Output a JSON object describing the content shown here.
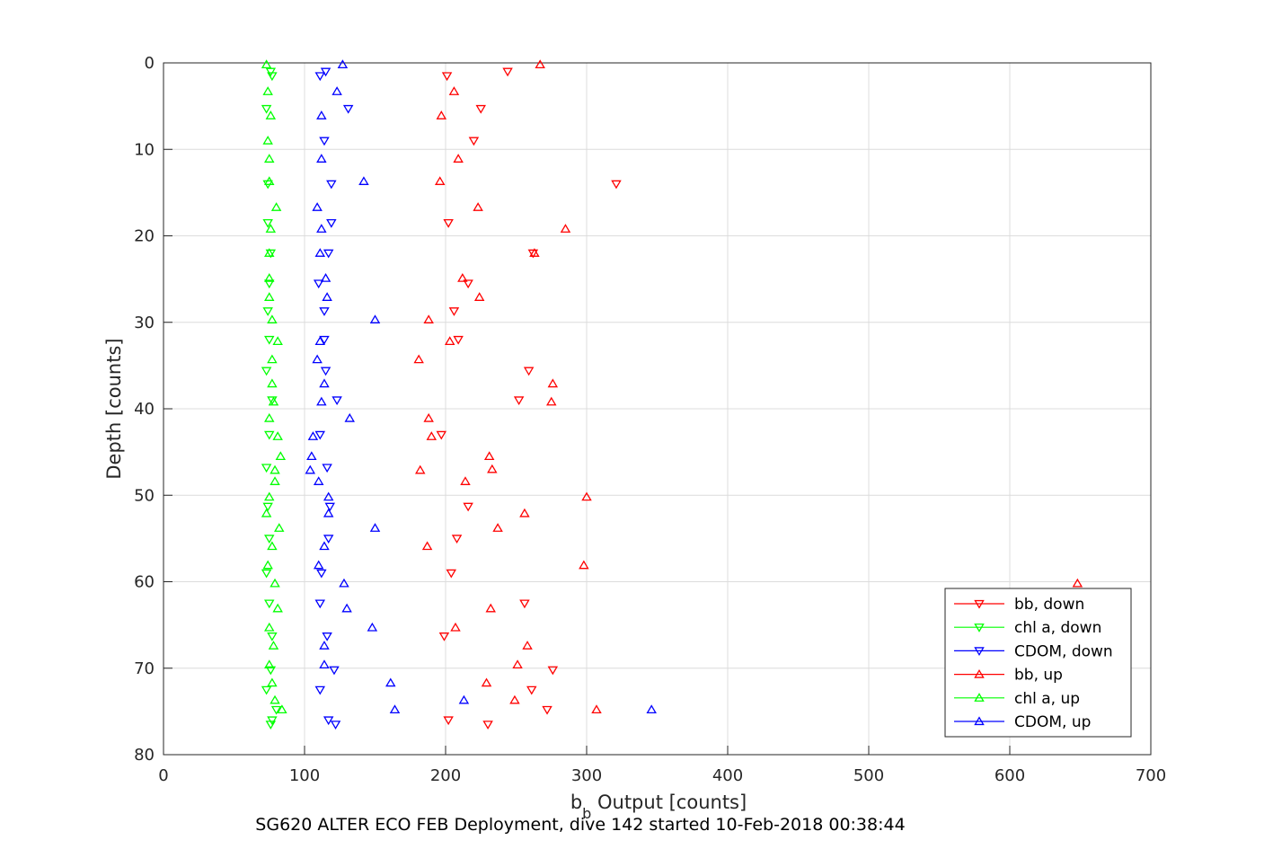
{
  "chart_data": {
    "type": "scatter",
    "caption": "SG620 ALTER ECO FEB Deployment, dive 142 started 10-Feb-2018 00:38:44",
    "xlabel_main": "b",
    "xlabel_sub": "b",
    "xlabel_rest": " Output [counts]",
    "ylabel": "Depth [counts]",
    "xlim": [
      0,
      700
    ],
    "ylim": [
      0,
      80
    ],
    "y_reversed": true,
    "grid": true,
    "legend_position": "bottom-right",
    "xticks": [
      0,
      100,
      200,
      300,
      400,
      500,
      600,
      700
    ],
    "yticks": [
      0,
      10,
      20,
      30,
      40,
      50,
      60,
      70,
      80
    ],
    "series": [
      {
        "name": "bb, down",
        "color": "#ff0000",
        "marker": "triangle-down",
        "points": [
          [
            201,
            1.5
          ],
          [
            244,
            1
          ],
          [
            225,
            5.3
          ],
          [
            220,
            9
          ],
          [
            321,
            14
          ],
          [
            202,
            18.5
          ],
          [
            262,
            22
          ],
          [
            216,
            25.5
          ],
          [
            206,
            28.7
          ],
          [
            209,
            32
          ],
          [
            259,
            35.6
          ],
          [
            252,
            39
          ],
          [
            197,
            43
          ],
          [
            216,
            51.3
          ],
          [
            208,
            55
          ],
          [
            204,
            59
          ],
          [
            256,
            62.5
          ],
          [
            199,
            66.3
          ],
          [
            276,
            70.2
          ],
          [
            261,
            72.5
          ],
          [
            272,
            74.8
          ],
          [
            202,
            76
          ],
          [
            230,
            76.5
          ]
        ]
      },
      {
        "name": "chl a, down",
        "color": "#00ff00",
        "marker": "triangle-down",
        "points": [
          [
            76,
            1
          ],
          [
            77,
            1.5
          ],
          [
            73,
            5.3
          ],
          [
            74,
            14
          ],
          [
            74,
            18.5
          ],
          [
            76,
            22
          ],
          [
            75,
            25.5
          ],
          [
            74,
            28.7
          ],
          [
            75,
            32
          ],
          [
            73,
            35.6
          ],
          [
            77,
            39
          ],
          [
            75,
            43
          ],
          [
            73,
            46.8
          ],
          [
            74,
            51.3
          ],
          [
            75,
            55
          ],
          [
            73,
            59
          ],
          [
            75,
            62.5
          ],
          [
            77,
            66.3
          ],
          [
            76,
            70.2
          ],
          [
            73,
            72.5
          ],
          [
            80,
            74.8
          ],
          [
            77,
            76
          ],
          [
            76,
            76.5
          ]
        ]
      },
      {
        "name": "CDOM, down",
        "color": "#0000ff",
        "marker": "triangle-down",
        "points": [
          [
            115,
            1
          ],
          [
            111,
            1.5
          ],
          [
            131,
            5.3
          ],
          [
            114,
            9
          ],
          [
            119,
            14
          ],
          [
            119,
            18.5
          ],
          [
            117,
            22
          ],
          [
            110,
            25.5
          ],
          [
            114,
            28.7
          ],
          [
            114,
            32
          ],
          [
            115,
            35.6
          ],
          [
            123,
            39
          ],
          [
            111,
            43
          ],
          [
            116,
            46.8
          ],
          [
            118,
            51.3
          ],
          [
            117,
            55
          ],
          [
            112,
            59
          ],
          [
            111,
            62.5
          ],
          [
            116,
            66.3
          ],
          [
            121,
            70.2
          ],
          [
            111,
            72.5
          ],
          [
            117,
            76
          ],
          [
            122,
            76.5
          ]
        ]
      },
      {
        "name": "bb, up",
        "color": "#ff0000",
        "marker": "triangle-up",
        "points": [
          [
            267,
            0.2
          ],
          [
            206,
            3.3
          ],
          [
            197,
            6.1
          ],
          [
            209,
            11.1
          ],
          [
            196,
            13.7
          ],
          [
            223,
            16.7
          ],
          [
            285,
            19.2
          ],
          [
            263,
            22
          ],
          [
            212,
            24.9
          ],
          [
            224,
            27.1
          ],
          [
            188,
            29.7
          ],
          [
            203,
            32.2
          ],
          [
            181,
            34.3
          ],
          [
            276,
            37.1
          ],
          [
            275,
            39.2
          ],
          [
            188,
            41.1
          ],
          [
            190,
            43.2
          ],
          [
            231,
            45.5
          ],
          [
            233,
            47
          ],
          [
            182,
            47.1
          ],
          [
            214,
            48.4
          ],
          [
            300,
            50.2
          ],
          [
            256,
            52.1
          ],
          [
            237,
            53.8
          ],
          [
            187,
            55.9
          ],
          [
            298,
            58.1
          ],
          [
            648,
            60.2
          ],
          [
            232,
            63.1
          ],
          [
            207,
            65.3
          ],
          [
            258,
            67.4
          ],
          [
            251,
            69.6
          ],
          [
            229,
            71.7
          ],
          [
            249,
            73.7
          ],
          [
            307,
            74.8
          ]
        ]
      },
      {
        "name": "chl a, up",
        "color": "#00ff00",
        "marker": "triangle-up",
        "points": [
          [
            73,
            0.2
          ],
          [
            74,
            3.3
          ],
          [
            76,
            6.1
          ],
          [
            74,
            9
          ],
          [
            75,
            11.1
          ],
          [
            75,
            13.7
          ],
          [
            80,
            16.7
          ],
          [
            76,
            19.2
          ],
          [
            75,
            22
          ],
          [
            75,
            24.9
          ],
          [
            75,
            27.1
          ],
          [
            77,
            29.7
          ],
          [
            81,
            32.2
          ],
          [
            77,
            34.3
          ],
          [
            77,
            37.1
          ],
          [
            78,
            39.2
          ],
          [
            75,
            41.1
          ],
          [
            81,
            43.2
          ],
          [
            83,
            45.5
          ],
          [
            79,
            47.1
          ],
          [
            79,
            48.4
          ],
          [
            75,
            50.2
          ],
          [
            73,
            52.1
          ],
          [
            82,
            53.8
          ],
          [
            77,
            55.9
          ],
          [
            74,
            58.1
          ],
          [
            79,
            60.2
          ],
          [
            81,
            63.1
          ],
          [
            75,
            65.3
          ],
          [
            78,
            67.4
          ],
          [
            75,
            69.6
          ],
          [
            77,
            71.7
          ],
          [
            79,
            73.7
          ],
          [
            84,
            74.8
          ]
        ]
      },
      {
        "name": "CDOM, up",
        "color": "#0000ff",
        "marker": "triangle-up",
        "points": [
          [
            127,
            0.2
          ],
          [
            123,
            3.3
          ],
          [
            112,
            6.1
          ],
          [
            112,
            11.1
          ],
          [
            142,
            13.7
          ],
          [
            109,
            16.7
          ],
          [
            112,
            19.2
          ],
          [
            111,
            22
          ],
          [
            115,
            24.9
          ],
          [
            116,
            27.1
          ],
          [
            150,
            29.7
          ],
          [
            111,
            32.2
          ],
          [
            109,
            34.3
          ],
          [
            114,
            37.1
          ],
          [
            112,
            39.2
          ],
          [
            132,
            41.1
          ],
          [
            106,
            43.2
          ],
          [
            105,
            45.5
          ],
          [
            104,
            47.1
          ],
          [
            110,
            48.4
          ],
          [
            117,
            50.2
          ],
          [
            117,
            52.1
          ],
          [
            150,
            53.8
          ],
          [
            114,
            55.9
          ],
          [
            110,
            58.1
          ],
          [
            128,
            60.2
          ],
          [
            130,
            63.1
          ],
          [
            148,
            65.3
          ],
          [
            114,
            67.4
          ],
          [
            114,
            69.6
          ],
          [
            161,
            71.7
          ],
          [
            213,
            73.7
          ],
          [
            164,
            74.8
          ],
          [
            346,
            74.8
          ]
        ]
      }
    ]
  }
}
